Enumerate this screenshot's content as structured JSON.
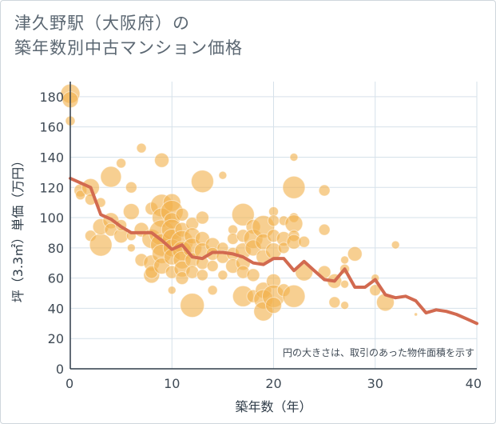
{
  "title_line1": "津久野駅（大阪府）の",
  "title_line2": "築年数別中古マンション価格",
  "colors": {
    "bubble": "#f2b14e",
    "line": "#d26a50",
    "grid": "#d6e1ea",
    "title": "#5b6772"
  },
  "chart_data": {
    "type": "scatter",
    "xlabel": "築年数（年）",
    "ylabel": "坪（3.3㎡）単価（万円）",
    "xlim": [
      0,
      40
    ],
    "ylim": [
      0,
      190
    ],
    "xticks": [
      "0",
      "10",
      "20",
      "30",
      "40"
    ],
    "yticks": [
      "0",
      "20",
      "40",
      "60",
      "80",
      "100",
      "120",
      "140",
      "160",
      "180"
    ],
    "note": "円の大きさは、取引のあった物件面積を示す",
    "grid": true,
    "series": [
      {
        "kind": "bubbles",
        "points": [
          [
            0,
            182,
            12
          ],
          [
            0,
            178,
            10
          ],
          [
            0,
            164,
            6
          ],
          [
            1,
            118,
            8
          ],
          [
            1,
            115,
            6
          ],
          [
            2,
            120,
            11
          ],
          [
            2,
            112,
            7
          ],
          [
            2,
            88,
            7
          ],
          [
            3,
            82,
            14
          ],
          [
            3,
            94,
            10
          ],
          [
            3,
            110,
            6
          ],
          [
            4,
            127,
            13
          ],
          [
            4,
            98,
            10
          ],
          [
            4,
            92,
            8
          ],
          [
            5,
            136,
            6
          ],
          [
            5,
            88,
            9
          ],
          [
            5,
            95,
            7
          ],
          [
            6,
            120,
            7
          ],
          [
            6,
            104,
            10
          ],
          [
            6,
            88,
            6
          ],
          [
            6,
            80,
            5
          ],
          [
            7,
            146,
            6
          ],
          [
            7,
            92,
            9
          ],
          [
            7,
            72,
            8
          ],
          [
            8,
            106,
            8
          ],
          [
            8,
            86,
            12
          ],
          [
            8,
            70,
            10
          ],
          [
            8,
            62,
            10
          ],
          [
            8,
            64,
            8
          ],
          [
            9,
            138,
            9
          ],
          [
            9,
            108,
            14
          ],
          [
            9,
            100,
            12
          ],
          [
            9,
            90,
            16
          ],
          [
            9,
            82,
            14
          ],
          [
            9,
            76,
            12
          ],
          [
            9,
            68,
            10
          ],
          [
            10,
            110,
            11
          ],
          [
            10,
            104,
            14
          ],
          [
            10,
            98,
            10
          ],
          [
            10,
            92,
            13
          ],
          [
            10,
            86,
            12
          ],
          [
            10,
            80,
            11
          ],
          [
            10,
            74,
            10
          ],
          [
            10,
            64,
            8
          ],
          [
            10,
            52,
            5
          ],
          [
            11,
            102,
            8
          ],
          [
            11,
            92,
            9
          ],
          [
            11,
            84,
            14
          ],
          [
            11,
            78,
            12
          ],
          [
            11,
            72,
            11
          ],
          [
            11,
            66,
            10
          ],
          [
            11,
            60,
            8
          ],
          [
            12,
            96,
            8
          ],
          [
            12,
            88,
            10
          ],
          [
            12,
            80,
            12
          ],
          [
            12,
            72,
            9
          ],
          [
            12,
            64,
            8
          ],
          [
            12,
            42,
            15
          ],
          [
            13,
            124,
            14
          ],
          [
            13,
            100,
            8
          ],
          [
            13,
            86,
            9
          ],
          [
            13,
            78,
            10
          ],
          [
            13,
            70,
            8
          ],
          [
            13,
            62,
            7
          ],
          [
            14,
            82,
            9
          ],
          [
            14,
            76,
            8
          ],
          [
            14,
            68,
            7
          ],
          [
            14,
            52,
            6
          ],
          [
            15,
            128,
            5
          ],
          [
            15,
            80,
            7
          ],
          [
            15,
            74,
            8
          ],
          [
            15,
            62,
            6
          ],
          [
            16,
            92,
            6
          ],
          [
            16,
            86,
            7
          ],
          [
            16,
            76,
            8
          ],
          [
            16,
            68,
            9
          ],
          [
            17,
            102,
            14
          ],
          [
            17,
            88,
            8
          ],
          [
            17,
            78,
            10
          ],
          [
            17,
            70,
            9
          ],
          [
            17,
            64,
            8
          ],
          [
            17,
            48,
            13
          ],
          [
            18,
            94,
            9
          ],
          [
            18,
            86,
            12
          ],
          [
            18,
            80,
            10
          ],
          [
            18,
            62,
            8
          ],
          [
            18,
            48,
            8
          ],
          [
            19,
            94,
            14
          ],
          [
            19,
            84,
            10
          ],
          [
            19,
            74,
            9
          ],
          [
            19,
            52,
            10
          ],
          [
            19,
            46,
            12
          ],
          [
            19,
            38,
            12
          ],
          [
            20,
            104,
            6
          ],
          [
            20,
            98,
            7
          ],
          [
            20,
            88,
            8
          ],
          [
            20,
            78,
            10
          ],
          [
            20,
            58,
            9
          ],
          [
            20,
            48,
            14
          ],
          [
            20,
            42,
            10
          ],
          [
            21,
            98,
            6
          ],
          [
            21,
            86,
            9
          ],
          [
            21,
            80,
            7
          ],
          [
            21,
            52,
            8
          ],
          [
            22,
            140,
            5
          ],
          [
            22,
            120,
            14
          ],
          [
            22,
            100,
            6
          ],
          [
            22,
            96,
            11
          ],
          [
            22,
            88,
            7
          ],
          [
            22,
            84,
            9
          ],
          [
            22,
            48,
            14
          ],
          [
            23,
            84,
            7
          ],
          [
            23,
            64,
            11
          ],
          [
            25,
            118,
            7
          ],
          [
            25,
            92,
            7
          ],
          [
            25,
            64,
            8
          ],
          [
            26,
            58,
            9
          ],
          [
            26,
            44,
            7
          ],
          [
            27,
            72,
            5
          ],
          [
            27,
            66,
            6
          ],
          [
            27,
            56,
            5
          ],
          [
            27,
            42,
            5
          ],
          [
            28,
            76,
            9
          ],
          [
            30,
            52,
            7
          ],
          [
            30,
            60,
            5
          ],
          [
            31,
            44,
            11
          ],
          [
            32,
            82,
            5
          ],
          [
            34,
            36,
            2
          ]
        ]
      },
      {
        "kind": "line",
        "points": [
          [
            0,
            126
          ],
          [
            1,
            123
          ],
          [
            2,
            120
          ],
          [
            3,
            102
          ],
          [
            4,
            99
          ],
          [
            5,
            94
          ],
          [
            6,
            90
          ],
          [
            7,
            90
          ],
          [
            8,
            90
          ],
          [
            9,
            85
          ],
          [
            10,
            79
          ],
          [
            11,
            82
          ],
          [
            12,
            74
          ],
          [
            13,
            73
          ],
          [
            14,
            77
          ],
          [
            15,
            77
          ],
          [
            16,
            76
          ],
          [
            17,
            74
          ],
          [
            18,
            70
          ],
          [
            19,
            69
          ],
          [
            20,
            73
          ],
          [
            21,
            73
          ],
          [
            22,
            65
          ],
          [
            23,
            71
          ],
          [
            24,
            65
          ],
          [
            25,
            59
          ],
          [
            26,
            58
          ],
          [
            27,
            66
          ],
          [
            28,
            54
          ],
          [
            29,
            54
          ],
          [
            30,
            59
          ],
          [
            31,
            49
          ],
          [
            32,
            47
          ],
          [
            33,
            48
          ],
          [
            34,
            45
          ],
          [
            35,
            37
          ],
          [
            36,
            39
          ],
          [
            37,
            38
          ],
          [
            38,
            36
          ],
          [
            39,
            33
          ],
          [
            40,
            30
          ]
        ]
      }
    ]
  }
}
